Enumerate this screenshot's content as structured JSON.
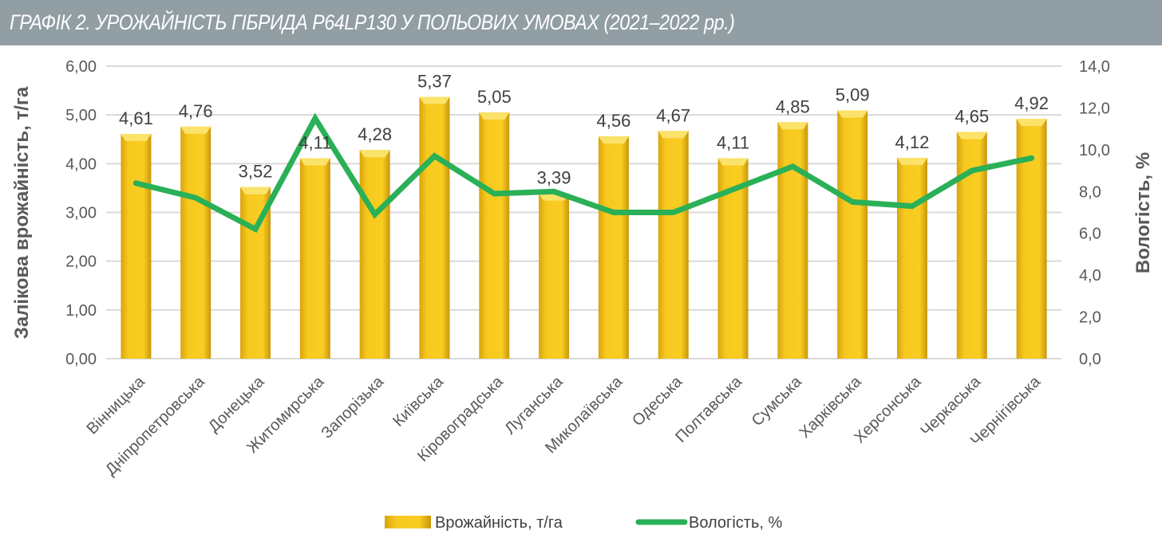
{
  "header": {
    "title": "ГРАФІК 2. УРОЖАЙНІСТЬ ГІБРИДА P64LP130 У ПОЛЬОВИХ УМОВАХ (2021–2022 рр.)"
  },
  "colors": {
    "bar": "#f5c518",
    "line": "#2ab057",
    "header": "#919ea4"
  },
  "chart_data": {
    "type": "bar+line",
    "title": "ГРАФІК 2. УРОЖАЙНІСТЬ ГІБРИДА P64LP130 У ПОЛЬОВИХ УМОВАХ (2021–2022 рр.)",
    "categories": [
      "Вінницька",
      "Дніпропетровська",
      "Донецька",
      "Житомирська",
      "Запорізька",
      "Київська",
      "Кіровоградська",
      "Луганська",
      "Миколаївська",
      "Одеська",
      "Полтавська",
      "Сумська",
      "Харківська",
      "Херсонська",
      "Черкаська",
      "Чернігівська"
    ],
    "series": [
      {
        "name": "Врожайність, т/га",
        "type": "bar",
        "axis": "left",
        "values": [
          4.61,
          4.76,
          3.52,
          4.11,
          4.28,
          5.37,
          5.05,
          3.39,
          4.56,
          4.67,
          4.11,
          4.85,
          5.09,
          4.12,
          4.65,
          4.92
        ],
        "labels": [
          "4,61",
          "4,76",
          "3,52",
          "4,11",
          "4,28",
          "5,37",
          "5,05",
          "3,39",
          "4,56",
          "4,67",
          "4,11",
          "4,85",
          "5,09",
          "4,12",
          "4,65",
          "4,92"
        ]
      },
      {
        "name": "Вологість, %",
        "type": "line",
        "axis": "right",
        "values": [
          8.4,
          7.7,
          6.2,
          11.5,
          6.9,
          9.7,
          7.9,
          8.0,
          7.0,
          7.0,
          8.1,
          9.2,
          7.5,
          7.3,
          9.0,
          9.6
        ]
      }
    ],
    "ylabel": "Залікова врожайність, т/га",
    "y2label": "Вологість, %",
    "ylim": [
      0,
      6
    ],
    "y2lim": [
      0,
      14
    ],
    "yticks": [
      "0,00",
      "1,00",
      "2,00",
      "3,00",
      "4,00",
      "5,00",
      "6,00"
    ],
    "y2ticks": [
      "0,0",
      "2,0",
      "4,0",
      "6,0",
      "8,0",
      "10,0",
      "12,0",
      "14,0"
    ],
    "grid": true,
    "legend": "bottom"
  }
}
